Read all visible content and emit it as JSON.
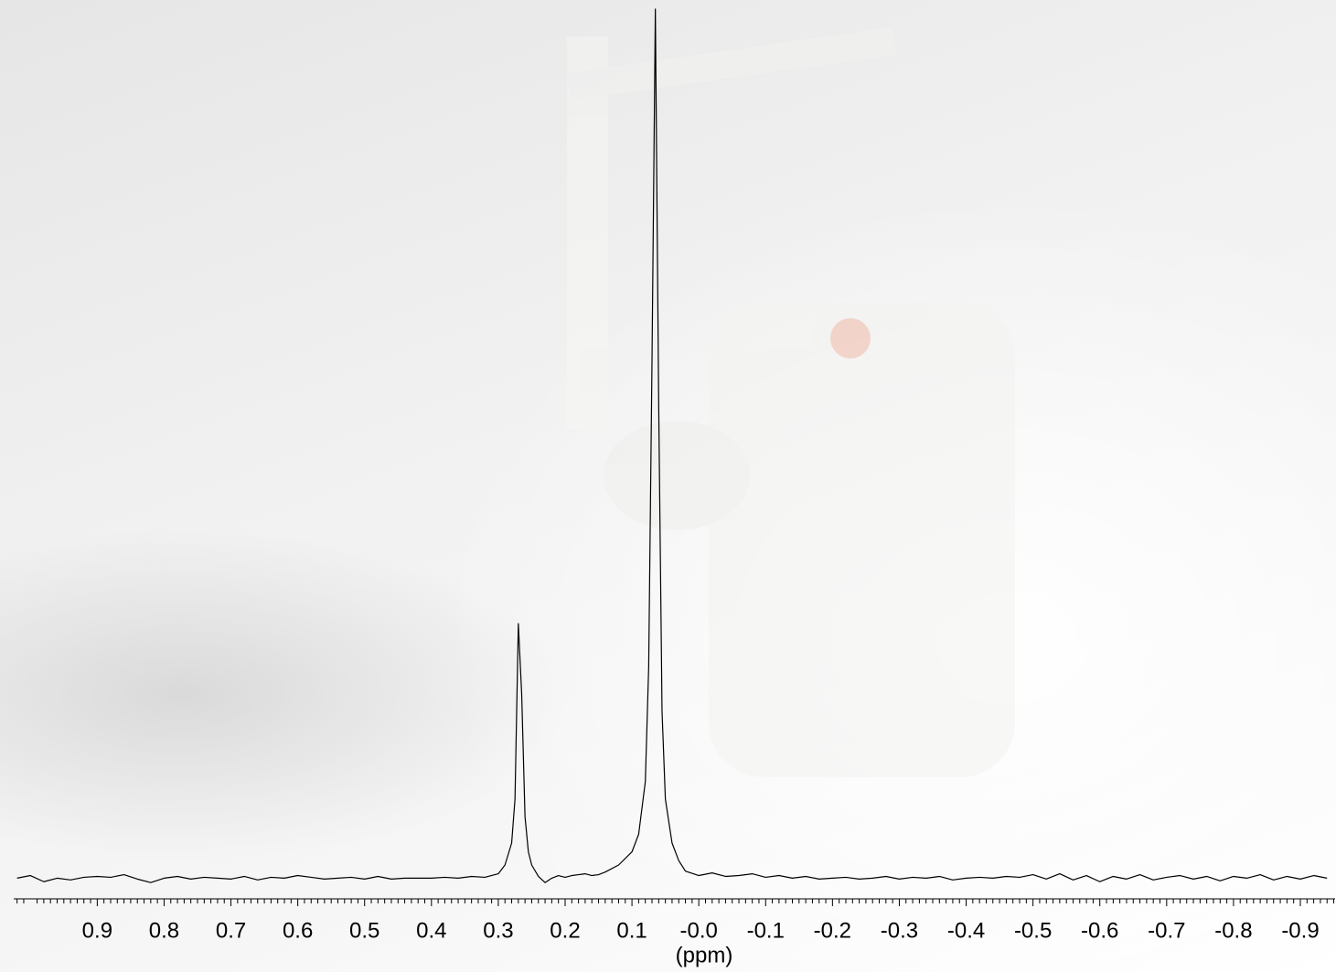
{
  "chart_data": {
    "type": "line",
    "xlabel": "(ppm)",
    "color": "#000000",
    "x_reversed": true,
    "xlim": [
      1.025,
      -0.952
    ],
    "ylim": [
      0,
      100
    ],
    "xticks": [
      0.9,
      0.8,
      0.7,
      0.6,
      0.5,
      0.4,
      0.3,
      0.2,
      0.1,
      {
        "value": 0,
        "label": "-0.0"
      },
      -0.1,
      -0.2,
      -0.3,
      -0.4,
      -0.5,
      -0.6,
      -0.7,
      -0.8,
      -0.9
    ],
    "x": [
      1.02,
      1.0,
      0.98,
      0.96,
      0.94,
      0.92,
      0.9,
      0.88,
      0.86,
      0.84,
      0.82,
      0.8,
      0.78,
      0.76,
      0.74,
      0.72,
      0.7,
      0.68,
      0.66,
      0.64,
      0.62,
      0.6,
      0.58,
      0.56,
      0.54,
      0.52,
      0.5,
      0.48,
      0.46,
      0.44,
      0.42,
      0.4,
      0.38,
      0.36,
      0.34,
      0.32,
      0.3,
      0.29,
      0.28,
      0.275,
      0.27,
      0.265,
      0.26,
      0.255,
      0.25,
      0.24,
      0.23,
      0.22,
      0.21,
      0.2,
      0.19,
      0.18,
      0.17,
      0.16,
      0.15,
      0.14,
      0.12,
      0.1,
      0.09,
      0.08,
      0.075,
      0.07,
      0.065,
      0.06,
      0.055,
      0.05,
      0.04,
      0.03,
      0.02,
      0.0,
      -0.02,
      -0.04,
      -0.06,
      -0.08,
      -0.1,
      -0.12,
      -0.14,
      -0.16,
      -0.18,
      -0.2,
      -0.22,
      -0.24,
      -0.26,
      -0.28,
      -0.3,
      -0.32,
      -0.34,
      -0.36,
      -0.38,
      -0.4,
      -0.42,
      -0.44,
      -0.46,
      -0.48,
      -0.5,
      -0.52,
      -0.54,
      -0.56,
      -0.58,
      -0.6,
      -0.62,
      -0.64,
      -0.66,
      -0.68,
      -0.7,
      -0.72,
      -0.74,
      -0.76,
      -0.78,
      -0.8,
      -0.82,
      -0.84,
      -0.86,
      -0.88,
      -0.9,
      -0.92,
      -0.94
    ],
    "values": [
      1.0,
      1.3,
      0.6,
      1.0,
      0.8,
      1.1,
      1.2,
      1.1,
      1.4,
      0.9,
      0.5,
      1.0,
      1.2,
      0.9,
      1.1,
      1.0,
      0.9,
      1.2,
      0.8,
      1.1,
      1.0,
      1.3,
      1.1,
      0.9,
      1.0,
      1.1,
      0.9,
      1.2,
      0.9,
      1.0,
      1.0,
      1.0,
      1.1,
      1.0,
      1.2,
      1.1,
      1.5,
      2.5,
      5,
      10,
      30,
      22,
      8,
      4,
      2.5,
      1.2,
      0.5,
      1.0,
      1.3,
      1.1,
      1.3,
      1.4,
      1.5,
      1.3,
      1.4,
      1.7,
      2.5,
      4,
      6,
      12,
      25,
      60,
      100,
      55,
      20,
      10,
      5,
      3,
      1.8,
      1.3,
      1.6,
      1.2,
      1.3,
      1.5,
      1.1,
      1.3,
      1.0,
      1.2,
      0.9,
      1.0,
      1.1,
      0.9,
      1.0,
      1.2,
      0.9,
      1.1,
      1.0,
      1.2,
      0.8,
      1.0,
      1.1,
      1.0,
      1.2,
      1.1,
      1.4,
      0.9,
      1.5,
      0.8,
      1.3,
      0.6,
      1.2,
      0.9,
      1.4,
      0.8,
      1.1,
      1.3,
      0.9,
      1.2,
      0.7,
      1.2,
      1.0,
      1.4,
      0.8,
      1.2,
      0.9,
      1.3,
      1.0
    ]
  }
}
